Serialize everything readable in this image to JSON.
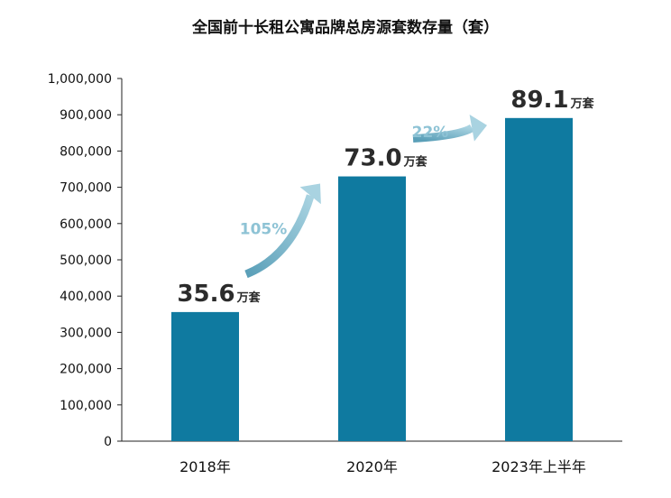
{
  "chart_data": {
    "type": "bar",
    "title": "全国前十长租公寓品牌总房源套数存量（套）",
    "categories": [
      "2018年",
      "2020年",
      "2023年上半年"
    ],
    "values": [
      356000,
      730000,
      891000
    ],
    "ylim": [
      0,
      1000000
    ],
    "yticks": [
      "0",
      "100,000",
      "200,000",
      "300,000",
      "400,000",
      "500,000",
      "600,000",
      "700,000",
      "800,000",
      "900,000",
      "1,000,000"
    ],
    "data_labels": [
      {
        "number": "35.6",
        "unit": "万套"
      },
      {
        "number": "73.0",
        "unit": "万套"
      },
      {
        "number": "89.1",
        "unit": "万套"
      }
    ],
    "growth": [
      {
        "from": 0,
        "to": 1,
        "label": "105%"
      },
      {
        "from": 1,
        "to": 2,
        "label": "22%"
      }
    ],
    "grid": false,
    "bar_color": "#0f7aa0",
    "arrow_color": "#8ec3d5"
  }
}
